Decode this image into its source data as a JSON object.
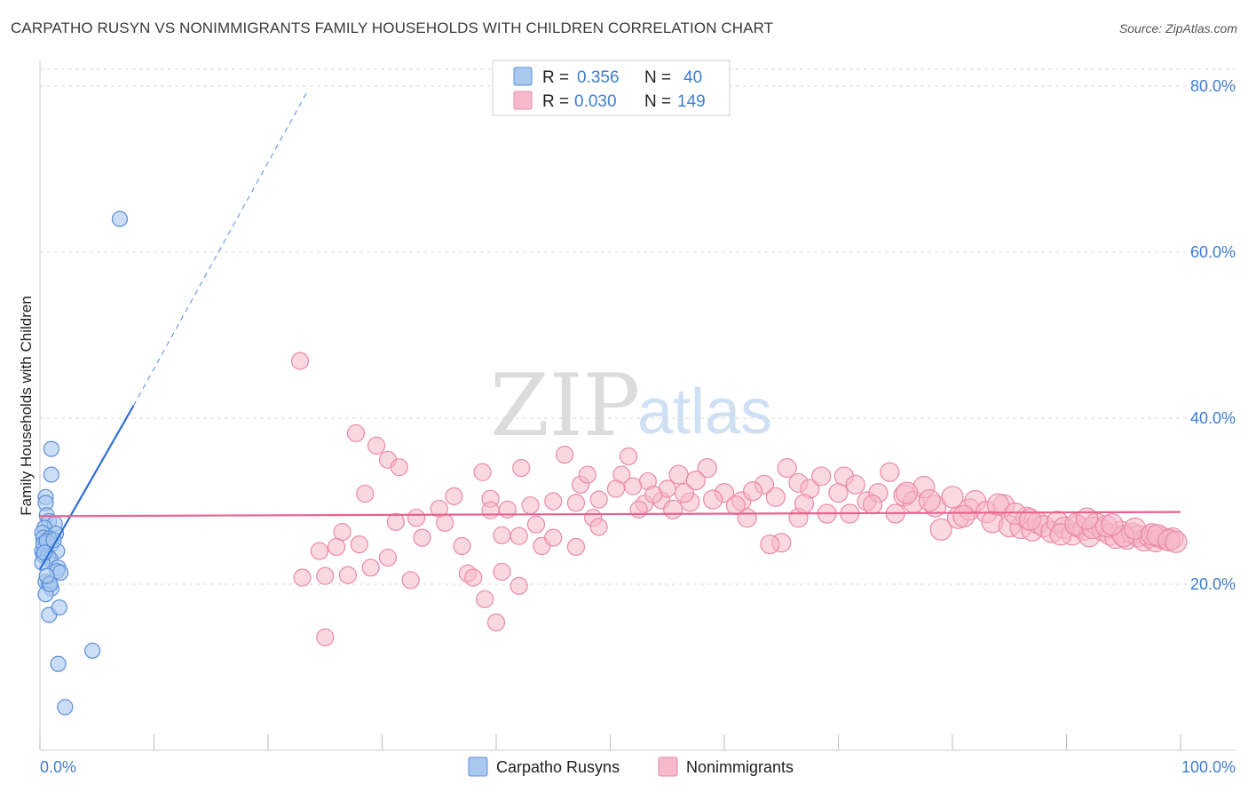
{
  "title": "CARPATHO RUSYN VS NONIMMIGRANTS FAMILY HOUSEHOLDS WITH CHILDREN CORRELATION CHART",
  "source": "Source: ZipAtlas.com",
  "watermark": {
    "part1": "ZIP",
    "part2": "atlas"
  },
  "colors": {
    "blue_fill": "#a9c8f0",
    "blue_stroke": "#5b8fd8",
    "blue_line": "#2a6fd6",
    "pink_fill": "#f6b8cb",
    "pink_stroke": "#e98aa8",
    "pink_line": "#e8638f",
    "tick_text": "#3f7fd1",
    "grid": "#d8d8d8"
  },
  "legend": {
    "rows": [
      {
        "r_label": "R =",
        "r_value": "0.356",
        "n_label": "N =",
        "n_value": "40"
      },
      {
        "r_label": "R =",
        "r_value": "0.030",
        "n_label": "N =",
        "n_value": "149"
      }
    ]
  },
  "bottom_legend": [
    "Carpatho Rusyns",
    "Nonimmigrants"
  ],
  "chart_data": {
    "type": "scatter",
    "title": "CARPATHO RUSYN VS NONIMMIGRANTS FAMILY HOUSEHOLDS WITH CHILDREN CORRELATION CHART",
    "xlabel": "",
    "ylabel": "Family Households with Children",
    "xlim": [
      0,
      100
    ],
    "ylim": [
      0,
      80
    ],
    "x_tick_labels": [
      "0.0%",
      "100.0%"
    ],
    "y_ticks": [
      20,
      40,
      60,
      80
    ],
    "y_tick_labels": [
      "20.0%",
      "40.0%",
      "60.0%",
      "80.0%"
    ],
    "grid": true,
    "legend_position": "top-center",
    "series": [
      {
        "name": "Carpatho Rusyns",
        "R": 0.356,
        "N": 40,
        "trend": {
          "x0": 0,
          "y0": 21.8,
          "x1": 8.2,
          "y1": 41.5,
          "dashed_to_x": 23.5,
          "dashed_to_y": 79.5
        },
        "points": [
          [
            7.0,
            64.0
          ],
          [
            1.0,
            36.3
          ],
          [
            1.0,
            33.2
          ],
          [
            0.5,
            30.5
          ],
          [
            0.5,
            29.8
          ],
          [
            0.6,
            28.3
          ],
          [
            0.8,
            27.6
          ],
          [
            1.3,
            27.3
          ],
          [
            0.4,
            26.8
          ],
          [
            0.2,
            26.2
          ],
          [
            1.4,
            26.1
          ],
          [
            0.3,
            25.6
          ],
          [
            0.8,
            25.5
          ],
          [
            0.5,
            25.0
          ],
          [
            1.0,
            24.8
          ],
          [
            0.4,
            24.4
          ],
          [
            0.2,
            24.0
          ],
          [
            1.5,
            24.0
          ],
          [
            0.3,
            23.5
          ],
          [
            0.7,
            23.4
          ],
          [
            0.9,
            23.0
          ],
          [
            0.2,
            22.6
          ],
          [
            1.6,
            22.0
          ],
          [
            1.5,
            21.6
          ],
          [
            1.8,
            21.4
          ],
          [
            0.5,
            20.3
          ],
          [
            0.8,
            20.1
          ],
          [
            1.0,
            19.5
          ],
          [
            0.5,
            18.8
          ],
          [
            0.8,
            16.3
          ],
          [
            1.7,
            17.2
          ],
          [
            1.6,
            10.4
          ],
          [
            4.6,
            12.0
          ],
          [
            2.2,
            5.2
          ],
          [
            0.3,
            24.9
          ],
          [
            0.6,
            25.2
          ],
          [
            1.2,
            25.3
          ],
          [
            0.4,
            23.8
          ],
          [
            0.9,
            20.0
          ],
          [
            0.6,
            21.0
          ]
        ]
      },
      {
        "name": "Nonimmigrants",
        "R": 0.03,
        "N": 149,
        "trend": {
          "x0": 0,
          "y0": 28.2,
          "x1": 100,
          "y1": 28.7
        },
        "points": [
          [
            22.8,
            46.9
          ],
          [
            27.7,
            38.2
          ],
          [
            29.5,
            36.7
          ],
          [
            30.5,
            35.0
          ],
          [
            31.5,
            34.1
          ],
          [
            28.5,
            30.9
          ],
          [
            38.8,
            33.5
          ],
          [
            42.2,
            34.0
          ],
          [
            46.0,
            35.6
          ],
          [
            47.4,
            32.0
          ],
          [
            48.0,
            33.2
          ],
          [
            51.0,
            33.2
          ],
          [
            51.6,
            35.4
          ],
          [
            53.3,
            32.4
          ],
          [
            53.0,
            29.7
          ],
          [
            54.5,
            30.1
          ],
          [
            52.5,
            29.0
          ],
          [
            50.5,
            31.5
          ],
          [
            49.0,
            30.2
          ],
          [
            47.0,
            29.8
          ],
          [
            45.0,
            30.0
          ],
          [
            43.0,
            29.5
          ],
          [
            41.0,
            29.0
          ],
          [
            39.5,
            30.3
          ],
          [
            36.3,
            30.6
          ],
          [
            35.0,
            29.1
          ],
          [
            33.0,
            28.0
          ],
          [
            31.2,
            27.5
          ],
          [
            26.5,
            26.3
          ],
          [
            28.0,
            24.8
          ],
          [
            26.0,
            24.5
          ],
          [
            24.5,
            24.0
          ],
          [
            29.0,
            22.0
          ],
          [
            30.5,
            23.2
          ],
          [
            27.0,
            21.1
          ],
          [
            25.0,
            21.0
          ],
          [
            23.0,
            20.8
          ],
          [
            33.5,
            25.6
          ],
          [
            35.5,
            27.4
          ],
          [
            37.0,
            24.6
          ],
          [
            37.5,
            21.3
          ],
          [
            38.0,
            20.8
          ],
          [
            39.5,
            28.9
          ],
          [
            40.5,
            25.9
          ],
          [
            42.0,
            25.8
          ],
          [
            43.5,
            27.2
          ],
          [
            44.0,
            24.6
          ],
          [
            45.0,
            25.6
          ],
          [
            47.0,
            24.5
          ],
          [
            48.5,
            28.0
          ],
          [
            49.0,
            26.9
          ],
          [
            39.0,
            18.2
          ],
          [
            40.5,
            21.5
          ],
          [
            42.0,
            19.8
          ],
          [
            32.5,
            20.5
          ],
          [
            25.0,
            13.6
          ],
          [
            40.0,
            15.4
          ],
          [
            55.0,
            31.5
          ],
          [
            56.0,
            33.2
          ],
          [
            57.0,
            29.9
          ],
          [
            58.5,
            34.0
          ],
          [
            60.0,
            31.0
          ],
          [
            61.5,
            30.0
          ],
          [
            62.0,
            28.0
          ],
          [
            63.5,
            32.0
          ],
          [
            64.5,
            30.5
          ],
          [
            65.5,
            34.0
          ],
          [
            66.5,
            32.2
          ],
          [
            67.5,
            31.5
          ],
          [
            68.5,
            33.0
          ],
          [
            69.0,
            28.5
          ],
          [
            70.0,
            31.0
          ],
          [
            70.5,
            33.0
          ],
          [
            71.5,
            32.0
          ],
          [
            72.5,
            30.0
          ],
          [
            73.5,
            31.0
          ],
          [
            74.5,
            33.5
          ],
          [
            75.0,
            28.5
          ],
          [
            75.8,
            30.7
          ],
          [
            76.6,
            29.9
          ],
          [
            77.5,
            31.7
          ],
          [
            78.5,
            29.4
          ],
          [
            79.0,
            26.6
          ],
          [
            80.0,
            30.5
          ],
          [
            80.5,
            28.0
          ],
          [
            81.5,
            29.0
          ],
          [
            82.0,
            30.0
          ],
          [
            83.0,
            28.7
          ],
          [
            83.5,
            27.5
          ],
          [
            84.5,
            29.5
          ],
          [
            85.0,
            27.0
          ],
          [
            86.0,
            26.8
          ],
          [
            86.5,
            28.0
          ],
          [
            87.0,
            26.5
          ],
          [
            87.5,
            27.4
          ],
          [
            88.0,
            27.0
          ],
          [
            88.7,
            26.3
          ],
          [
            89.2,
            27.5
          ],
          [
            89.8,
            26.8
          ],
          [
            90.5,
            26.0
          ],
          [
            91.0,
            27.0
          ],
          [
            91.5,
            26.6
          ],
          [
            92.0,
            25.8
          ],
          [
            92.6,
            27.3
          ],
          [
            93.2,
            26.5
          ],
          [
            93.8,
            26.0
          ],
          [
            94.3,
            25.6
          ],
          [
            94.8,
            26.3
          ],
          [
            95.3,
            25.5
          ],
          [
            95.8,
            26.1
          ],
          [
            96.3,
            25.8
          ],
          [
            96.8,
            25.3
          ],
          [
            97.3,
            25.7
          ],
          [
            97.8,
            25.2
          ],
          [
            98.3,
            25.6
          ],
          [
            98.8,
            25.4
          ],
          [
            99.3,
            25.5
          ],
          [
            65.0,
            25.0
          ],
          [
            64.0,
            24.8
          ],
          [
            66.5,
            28.0
          ],
          [
            55.5,
            29.0
          ],
          [
            56.5,
            31.0
          ],
          [
            59.0,
            30.2
          ],
          [
            61.0,
            29.5
          ],
          [
            57.5,
            32.5
          ],
          [
            53.8,
            30.8
          ],
          [
            52.0,
            31.8
          ],
          [
            62.5,
            31.2
          ],
          [
            67.0,
            29.7
          ],
          [
            71.0,
            28.5
          ],
          [
            73.0,
            29.6
          ],
          [
            76.0,
            31.0
          ],
          [
            78.0,
            30.1
          ],
          [
            81.0,
            28.2
          ],
          [
            84.0,
            29.6
          ],
          [
            85.5,
            28.5
          ],
          [
            86.8,
            27.8
          ],
          [
            89.5,
            26.0
          ],
          [
            90.8,
            27.2
          ],
          [
            92.3,
            26.8
          ],
          [
            93.5,
            27.0
          ],
          [
            95.0,
            25.8
          ],
          [
            96.0,
            26.7
          ],
          [
            97.5,
            26.0
          ],
          [
            98.0,
            25.9
          ],
          [
            99.0,
            25.3
          ],
          [
            99.6,
            25.1
          ],
          [
            94.0,
            27.2
          ],
          [
            91.8,
            27.9
          ]
        ]
      }
    ]
  }
}
